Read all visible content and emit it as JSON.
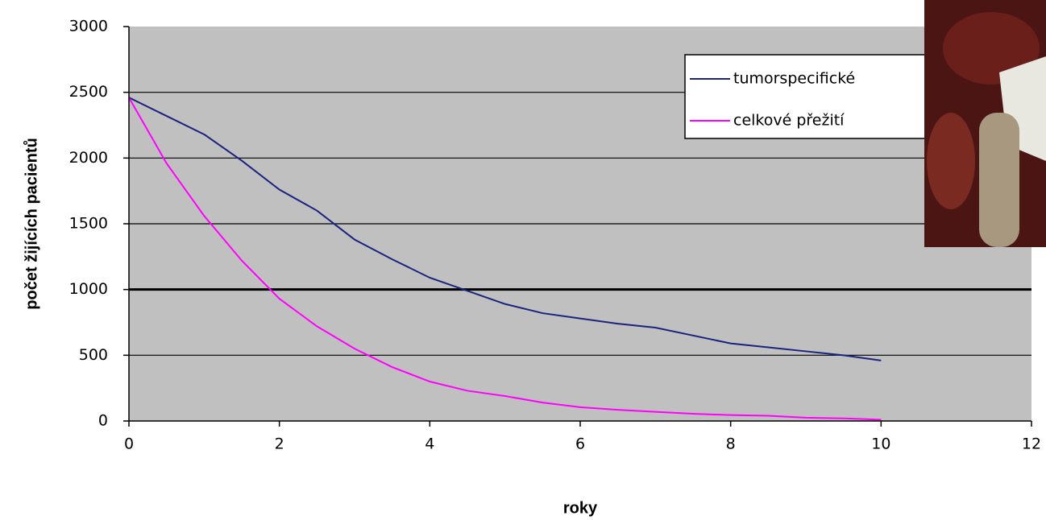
{
  "chart_data": {
    "type": "line",
    "x_label": "roky",
    "y_label": "počet žijících pacientů",
    "x": [
      0,
      0.5,
      1,
      1.5,
      2,
      2.5,
      3,
      3.5,
      4,
      4.5,
      5,
      5.5,
      6,
      6.5,
      7,
      7.5,
      8,
      8.5,
      9,
      9.5,
      10
    ],
    "series": [
      {
        "name": "tumorspecifické",
        "color": "#1a237e",
        "values": [
          2460,
          2320,
          2180,
          1980,
          1760,
          1600,
          1380,
          1230,
          1090,
          990,
          890,
          820,
          780,
          740,
          710,
          650,
          590,
          560,
          530,
          500,
          460
        ]
      },
      {
        "name": "celkové přežití",
        "color": "#ff00ff",
        "values": [
          2460,
          1960,
          1560,
          1220,
          930,
          720,
          550,
          410,
          300,
          230,
          190,
          140,
          105,
          85,
          70,
          55,
          45,
          40,
          25,
          20,
          10
        ]
      }
    ],
    "xlim": [
      0,
      12
    ],
    "xticks": [
      0,
      2,
      4,
      6,
      8,
      10,
      12
    ],
    "ylim": [
      0,
      3000
    ],
    "yticks": [
      0,
      500,
      1000,
      1500,
      2000,
      2500,
      3000
    ],
    "reference_line": 1000,
    "grid": true
  }
}
